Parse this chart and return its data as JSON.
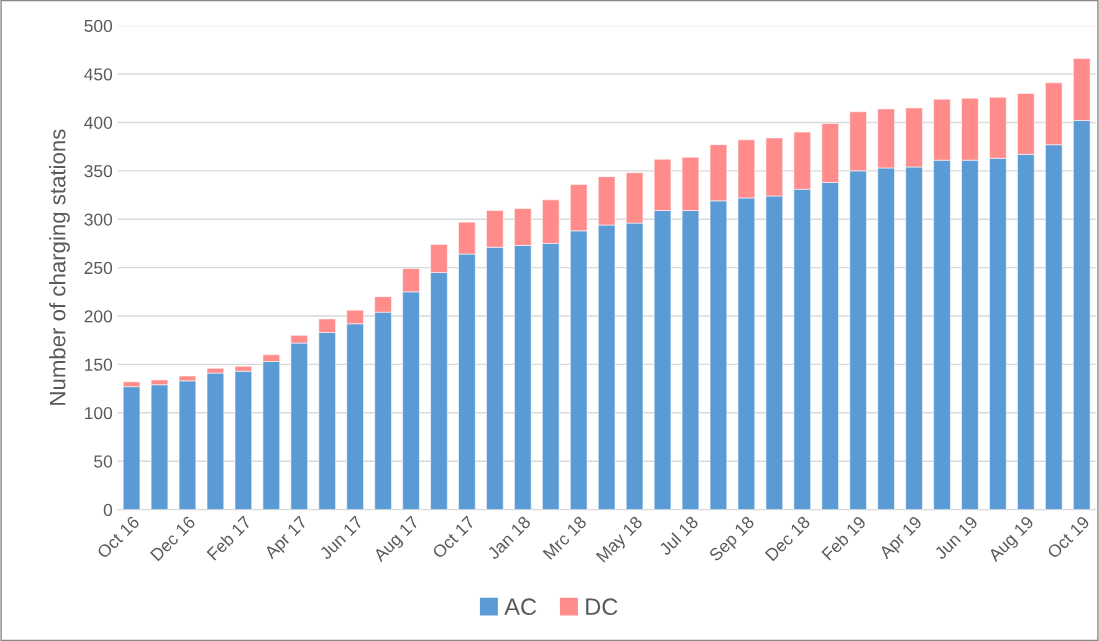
{
  "chart_data": {
    "type": "bar",
    "stacked": true,
    "ylabel": "Number of charging stations",
    "categories": [
      "Oct 16",
      null,
      "Dec 16",
      null,
      "Feb 17",
      null,
      "Apr 17",
      null,
      "Jun 17",
      null,
      "Aug 17",
      null,
      "Oct 17",
      null,
      "Jan 18",
      null,
      "Mrc 18",
      null,
      "May 18",
      null,
      "Jul 18",
      null,
      "Sep 18",
      null,
      "Dec 18",
      null,
      "Feb 19",
      null,
      "Apr 19",
      null,
      "Jun 19",
      null,
      "Aug 19",
      null,
      "Oct 19"
    ],
    "series": [
      {
        "name": "AC",
        "color": "#5b9bd5",
        "values": [
          127,
          129,
          133,
          141,
          143,
          153,
          172,
          183,
          192,
          204,
          225,
          245,
          264,
          271,
          273,
          275,
          288,
          294,
          296,
          309,
          309,
          319,
          322,
          324,
          331,
          338,
          350,
          353,
          354,
          361,
          361,
          363,
          367,
          377,
          402
        ]
      },
      {
        "name": "DC",
        "color": "#ff8b8b",
        "values": [
          5,
          5,
          5,
          5,
          5,
          7,
          8,
          14,
          14,
          16,
          24,
          29,
          33,
          38,
          38,
          45,
          48,
          50,
          52,
          53,
          55,
          58,
          60,
          60,
          59,
          61,
          61,
          61,
          61,
          63,
          64,
          63,
          63,
          64,
          64
        ]
      }
    ],
    "ylim": [
      0,
      500
    ],
    "yticks": [
      0,
      50,
      100,
      150,
      200,
      250,
      300,
      350,
      400,
      450,
      500
    ],
    "grid": "y",
    "legend": "bottom"
  }
}
